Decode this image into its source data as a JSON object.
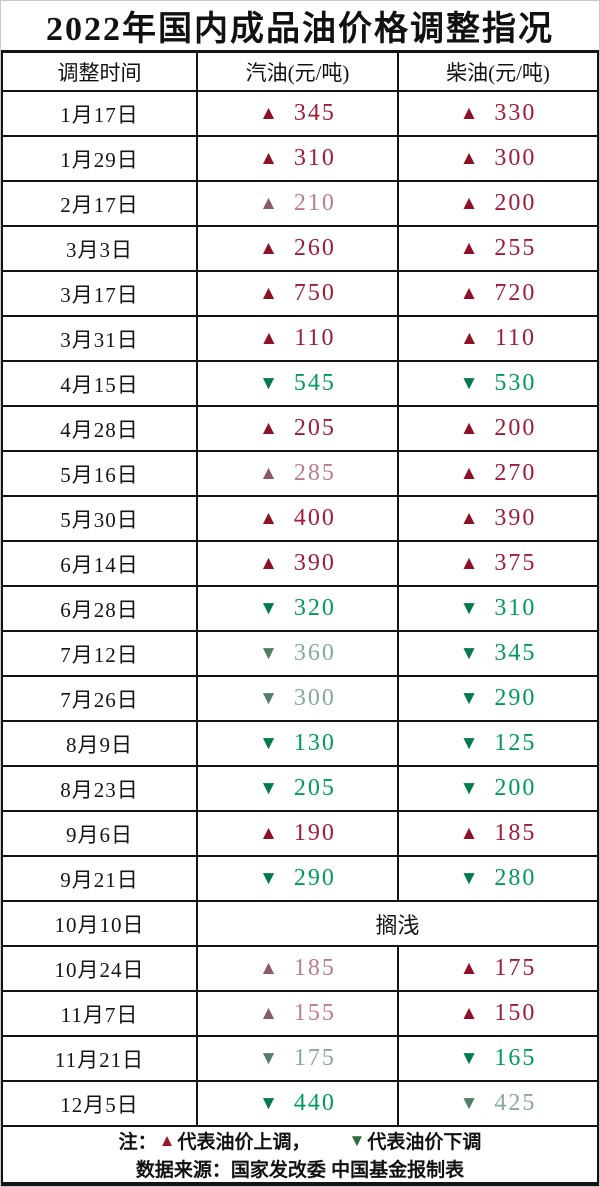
{
  "title": "2022年国内成品油价格调整指况",
  "chart_data": {
    "type": "table",
    "title": "2022年国内成品油价格调整指况",
    "columns": [
      "调整时间",
      "汽油(元/吨)",
      "柴油(元/吨)"
    ],
    "unit": "元/吨",
    "up_symbol": "▲",
    "down_symbol": "▼",
    "rows": [
      {
        "date": "1月17日",
        "gasoline": {
          "dir": "up",
          "value": "345"
        },
        "diesel": {
          "dir": "up",
          "value": "330"
        }
      },
      {
        "date": "1月29日",
        "gasoline": {
          "dir": "up",
          "value": "310"
        },
        "diesel": {
          "dir": "up",
          "value": "300"
        }
      },
      {
        "date": "2月17日",
        "gasoline": {
          "dir": "up",
          "value": "210",
          "tone": "soft"
        },
        "diesel": {
          "dir": "up",
          "value": "200"
        }
      },
      {
        "date": "3月3日",
        "gasoline": {
          "dir": "up",
          "value": "260"
        },
        "diesel": {
          "dir": "up",
          "value": "255"
        }
      },
      {
        "date": "3月17日",
        "gasoline": {
          "dir": "up",
          "value": "750"
        },
        "diesel": {
          "dir": "up",
          "value": "720"
        }
      },
      {
        "date": "3月31日",
        "gasoline": {
          "dir": "up",
          "value": "110"
        },
        "diesel": {
          "dir": "up",
          "value": "110"
        }
      },
      {
        "date": "4月15日",
        "gasoline": {
          "dir": "down",
          "value": "545"
        },
        "diesel": {
          "dir": "down",
          "value": "530"
        }
      },
      {
        "date": "4月28日",
        "gasoline": {
          "dir": "up",
          "value": "205"
        },
        "diesel": {
          "dir": "up",
          "value": "200"
        }
      },
      {
        "date": "5月16日",
        "gasoline": {
          "dir": "up",
          "value": "285",
          "tone": "soft"
        },
        "diesel": {
          "dir": "up",
          "value": "270"
        }
      },
      {
        "date": "5月30日",
        "gasoline": {
          "dir": "up",
          "value": "400"
        },
        "diesel": {
          "dir": "up",
          "value": "390"
        }
      },
      {
        "date": "6月14日",
        "gasoline": {
          "dir": "up",
          "value": "390"
        },
        "diesel": {
          "dir": "up",
          "value": "375"
        }
      },
      {
        "date": "6月28日",
        "gasoline": {
          "dir": "down",
          "value": "320"
        },
        "diesel": {
          "dir": "down",
          "value": "310"
        }
      },
      {
        "date": "7月12日",
        "gasoline": {
          "dir": "down",
          "value": "360",
          "tone": "soft"
        },
        "diesel": {
          "dir": "down",
          "value": "345"
        }
      },
      {
        "date": "7月26日",
        "gasoline": {
          "dir": "down",
          "value": "300",
          "tone": "soft"
        },
        "diesel": {
          "dir": "down",
          "value": "290"
        }
      },
      {
        "date": "8月9日",
        "gasoline": {
          "dir": "down",
          "value": "130"
        },
        "diesel": {
          "dir": "down",
          "value": "125"
        }
      },
      {
        "date": "8月23日",
        "gasoline": {
          "dir": "down",
          "value": "205"
        },
        "diesel": {
          "dir": "down",
          "value": "200"
        }
      },
      {
        "date": "9月6日",
        "gasoline": {
          "dir": "up",
          "value": "190"
        },
        "diesel": {
          "dir": "up",
          "value": "185"
        }
      },
      {
        "date": "9月21日",
        "gasoline": {
          "dir": "down",
          "value": "290"
        },
        "diesel": {
          "dir": "down",
          "value": "280"
        }
      },
      {
        "date": "10月10日",
        "merged": "搁浅"
      },
      {
        "date": "10月24日",
        "gasoline": {
          "dir": "up",
          "value": "185",
          "tone": "soft"
        },
        "diesel": {
          "dir": "up",
          "value": "175"
        }
      },
      {
        "date": "11月7日",
        "gasoline": {
          "dir": "up",
          "value": "155",
          "tone": "soft"
        },
        "diesel": {
          "dir": "up",
          "value": "150"
        }
      },
      {
        "date": "11月21日",
        "gasoline": {
          "dir": "down",
          "value": "175",
          "tone": "soft"
        },
        "diesel": {
          "dir": "down",
          "value": "165"
        }
      },
      {
        "date": "12月5日",
        "gasoline": {
          "dir": "down",
          "value": "440"
        },
        "diesel": {
          "dir": "down",
          "value": "425",
          "tone": "soft"
        }
      }
    ]
  },
  "footer": {
    "note_prefix": "注：",
    "up_symbol": "▲",
    "up_text": "代表油价上调，",
    "down_symbol": "▼",
    "down_text": "代表油价下调",
    "source": "数据来源：国家发改委  中国基金报制表"
  },
  "colors": {
    "up_strong": "#a01b36",
    "up_soft": "#b87e8d",
    "down_strong": "#009a5c",
    "down_soft": "#85ab95",
    "border": "#141414",
    "background": "#ffffff"
  }
}
